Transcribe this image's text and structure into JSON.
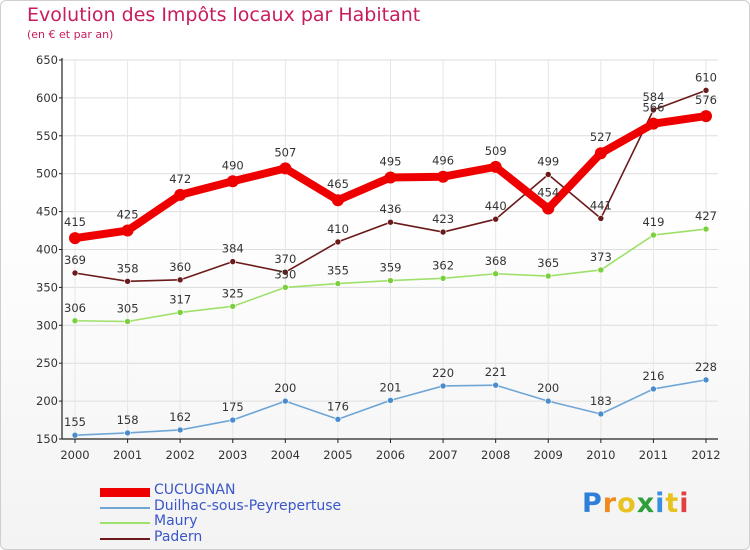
{
  "chart_data": {
    "type": "line",
    "title": "Evolution des Impôts locaux par Habitant",
    "subtitle": "(en € et par an)",
    "categories": [
      "2000",
      "2001",
      "2002",
      "2003",
      "2004",
      "2005",
      "2006",
      "2007",
      "2008",
      "2009",
      "2010",
      "2011",
      "2012"
    ],
    "ylim": [
      150,
      650
    ],
    "yticks": [
      150,
      200,
      250,
      300,
      350,
      400,
      450,
      500,
      550,
      600,
      650
    ],
    "grid": true,
    "legend_position": "bottom-left",
    "series": [
      {
        "name": "Padern",
        "color": "#6b1a1a",
        "marker": "#6b1a1a",
        "values": [
          369,
          358,
          360,
          384,
          370,
          410,
          436,
          423,
          440,
          499,
          441,
          584,
          610
        ]
      },
      {
        "name": "Maury",
        "color": "#9fe06a",
        "marker": "#7ad03c",
        "values": [
          306,
          305,
          317,
          325,
          350,
          355,
          359,
          362,
          368,
          365,
          373,
          419,
          427
        ]
      },
      {
        "name": "Duilhac-sous-Peyrepertuse",
        "color": "#6fa6d6",
        "marker": "#4a8ccc",
        "values": [
          155,
          158,
          162,
          175,
          200,
          176,
          201,
          220,
          221,
          200,
          183,
          216,
          228
        ]
      },
      {
        "name": "CUCUGNAN",
        "color": "#ee0000",
        "marker": "#ee0000",
        "values": [
          415,
          425,
          472,
          490,
          507,
          465,
          495,
          496,
          509,
          454,
          527,
          566,
          576
        ]
      }
    ]
  },
  "legend": {
    "items": [
      {
        "name": "CUCUGNAN",
        "color": "#ee0000"
      },
      {
        "name": "Duilhac-sous-Peyrepertuse",
        "color": "#6fa6d6"
      },
      {
        "name": "Maury",
        "color": "#9fe06a"
      },
      {
        "name": "Padern",
        "color": "#6b1a1a"
      }
    ]
  },
  "logo": {
    "letters": [
      "P",
      "r",
      "o",
      "x",
      "i",
      "t",
      "i"
    ],
    "colors": [
      "#2f7fd9",
      "#f08a1c",
      "#e8c21e",
      "#2f9f3a",
      "#3a8ee0",
      "#e8c21e",
      "#e04040"
    ]
  }
}
